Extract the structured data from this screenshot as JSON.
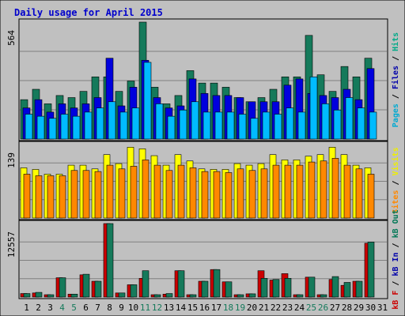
{
  "chart_data": {
    "type": "bar",
    "title": "Daily usage for April 2015",
    "days": [
      "1",
      "2",
      "3",
      "4",
      "5",
      "6",
      "7",
      "8",
      "9",
      "10",
      "11",
      "12",
      "13",
      "14",
      "15",
      "16",
      "17",
      "18",
      "19",
      "20",
      "21",
      "22",
      "23",
      "24",
      "25",
      "26",
      "27",
      "28",
      "29",
      "30",
      "31"
    ],
    "weekend_days": [
      "4",
      "5",
      "11",
      "12",
      "18",
      "19",
      "25",
      "26"
    ],
    "legend": {
      "panel1": [
        {
          "text": "Pages",
          "color": "#00aad2"
        },
        {
          "text": " / ",
          "color": "#000000"
        },
        {
          "text": "Files",
          "color": "#0000aa"
        },
        {
          "text": " / ",
          "color": "#000000"
        },
        {
          "text": "Hits",
          "color": "#00aa88"
        }
      ],
      "panel2": [
        {
          "text": "Sites",
          "color": "#ff8800"
        },
        {
          "text": " / ",
          "color": "#000000"
        },
        {
          "text": "Visits",
          "color": "#eeee00"
        }
      ],
      "panel3": [
        {
          "text": "kB F",
          "color": "#cc0000"
        },
        {
          "text": " / ",
          "color": "#000000"
        },
        {
          "text": "kB In",
          "color": "#0000aa"
        },
        {
          "text": " / ",
          "color": "#000000"
        },
        {
          "text": "kB Out",
          "color": "#007755"
        }
      ]
    },
    "panels": [
      {
        "id": "hits-files-pages",
        "ymax_label": "564",
        "ymax": 564,
        "series": [
          {
            "name": "Hits",
            "color": "#157a5b",
            "values": [
              190,
              240,
              170,
              210,
              200,
              230,
              300,
              300,
              230,
              280,
              564,
              250,
              170,
              210,
              330,
              270,
              270,
              250,
              200,
              180,
              200,
              240,
              300,
              300,
              500,
              310,
              230,
              350,
              300,
              390
            ]
          },
          {
            "name": "Files",
            "color": "#0000dd",
            "values": [
              150,
              190,
              130,
              170,
              150,
              170,
              200,
              390,
              160,
              250,
              380,
              200,
              150,
              160,
              290,
              220,
              210,
              210,
              200,
              180,
              180,
              180,
              260,
              290,
              220,
              210,
              200,
              240,
              190,
              340
            ]
          },
          {
            "name": "Pages",
            "color": "#00bbff",
            "values": [
              120,
              110,
              100,
              120,
              110,
              130,
              150,
              180,
              130,
              150,
              370,
              170,
              110,
              140,
              180,
              130,
              130,
              130,
              120,
              100,
              130,
              120,
              150,
              130,
              300,
              170,
              140,
              200,
              150,
              130
            ]
          }
        ]
      },
      {
        "id": "visits-sites",
        "ymax_label": "139",
        "ymax": 139,
        "series": [
          {
            "name": "Visits",
            "color": "#ffff00",
            "values": [
              95,
              92,
              83,
              83,
              100,
              100,
              93,
              120,
              103,
              134,
              131,
              118,
              100,
              120,
              108,
              93,
              92,
              92,
              103,
              100,
              103,
              120,
              110,
              110,
              117,
              120,
              134,
              120,
              100,
              95
            ]
          },
          {
            "name": "Sites",
            "color": "#ff8800",
            "values": [
              83,
              80,
              80,
              80,
              90,
              90,
              88,
              100,
              93,
              98,
              110,
              100,
              90,
              100,
              95,
              88,
              88,
              86,
              93,
              90,
              93,
              100,
              100,
              100,
              106,
              108,
              113,
              100,
              93,
              83
            ]
          }
        ]
      },
      {
        "id": "kbytes",
        "ymax_label": "12557",
        "ymax": 12557,
        "series": [
          {
            "name": "kB F",
            "color": "#cc0000",
            "values": [
              600,
              700,
              400,
              3300,
              500,
              3800,
              2700,
              12557,
              700,
              2100,
              3200,
              400,
              500,
              4500,
              400,
              2700,
              4700,
              2600,
              400,
              550,
              4500,
              2900,
              4000,
              400,
              3400,
              400,
              3000,
              2000,
              2700,
              9200
            ]
          },
          {
            "name": "kB Out",
            "color": "#157a5b",
            "values": [
              600,
              800,
              400,
              3300,
              500,
              3900,
              2700,
              12557,
              700,
              2100,
              4500,
              400,
              600,
              4500,
              400,
              2700,
              4700,
              2600,
              400,
              550,
              3200,
              3000,
              3200,
              400,
              3400,
              400,
              3500,
              2500,
              2700,
              9400
            ]
          }
        ]
      }
    ]
  }
}
